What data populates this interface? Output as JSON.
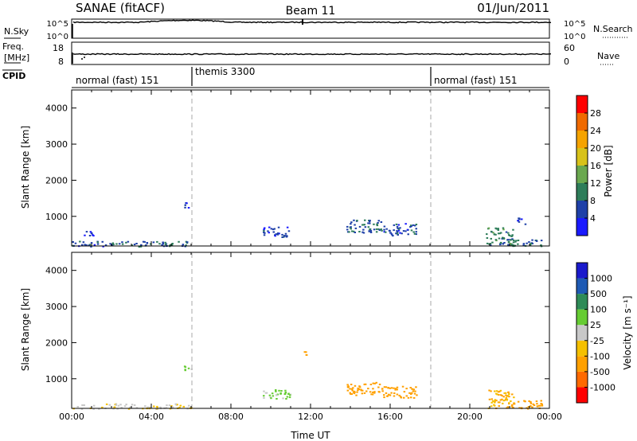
{
  "header": {
    "station": "SANAE (fitACF)",
    "beam": "Beam 11",
    "date": "01/Jun/2011"
  },
  "noise_panel": {
    "left_label": "N.Sky",
    "right_label": "N.Search",
    "left_ticks": [
      "10^5",
      "10^0"
    ],
    "right_ticks": [
      "10^5",
      "10^0"
    ]
  },
  "freq_panel": {
    "left_label_1": "Freq.",
    "left_label_2": "[MHz]",
    "right_label": "Nave",
    "left_ticks": [
      "18",
      "8"
    ],
    "right_ticks": [
      "60",
      "0"
    ]
  },
  "cpid": {
    "label": "CPID",
    "segments": [
      {
        "start_hour": 0,
        "label": "normal (fast) 151"
      },
      {
        "start_hour": 6,
        "label": "themis 3300"
      },
      {
        "start_hour": 18,
        "label": "normal (fast) 151"
      }
    ]
  },
  "colors": {
    "power_scale": [
      "#1a1aff",
      "#1e40a8",
      "#2e7d5a",
      "#6aa84f",
      "#d8c21a",
      "#f5a300",
      "#f06a00",
      "#ff0000"
    ],
    "velocity_scale": [
      "#ff0000",
      "#ff6a00",
      "#ffa000",
      "#f5c000",
      "#c8c8c8",
      "#66cc33",
      "#2e8b57",
      "#1e5ab4",
      "#1a1acc"
    ]
  },
  "chart_data": [
    {
      "type": "heatmap",
      "name": "power",
      "title": "",
      "xlabel": "",
      "ylabel": "Slant Range [km]",
      "xlim": [
        0,
        24
      ],
      "ylim": [
        180,
        4500
      ],
      "y_ticks": [
        1000,
        2000,
        3000,
        4000
      ],
      "x_ticks": [
        0,
        4,
        8,
        12,
        16,
        20,
        24
      ],
      "colorbar": {
        "label": "Power [dB]",
        "range": [
          0,
          32
        ],
        "ticks": [
          "4",
          "8",
          "12",
          "16",
          "20",
          "24",
          "28"
        ]
      },
      "regions": [
        {
          "x": [
            0.0,
            2.0
          ],
          "y": [
            180,
            330
          ],
          "value": 6
        },
        {
          "x": [
            2.0,
            6.0
          ],
          "y": [
            180,
            320
          ],
          "value": 8
        },
        {
          "x": [
            5.6,
            6.0
          ],
          "y": [
            1250,
            1420
          ],
          "value": 6
        },
        {
          "x": [
            9.6,
            11.0
          ],
          "y": [
            440,
            720
          ],
          "value": 6
        },
        {
          "x": [
            13.8,
            15.6
          ],
          "y": [
            560,
            920
          ],
          "value": 7
        },
        {
          "x": [
            15.6,
            17.3
          ],
          "y": [
            480,
            820
          ],
          "value": 6
        },
        {
          "x": [
            20.8,
            22.2
          ],
          "y": [
            200,
            700
          ],
          "value": 10
        },
        {
          "x": [
            21.8,
            23.6
          ],
          "y": [
            190,
            400
          ],
          "value": 9
        },
        {
          "x": [
            22.3,
            22.8
          ],
          "y": [
            800,
            1000
          ],
          "value": 5
        },
        {
          "x": [
            0.6,
            1.1
          ],
          "y": [
            450,
            650
          ],
          "value": 5
        }
      ]
    },
    {
      "type": "heatmap",
      "name": "velocity",
      "title": "",
      "xlabel": "Time UT",
      "ylabel": "Slant Range [km]",
      "xlim": [
        0,
        24
      ],
      "ylim": [
        180,
        4500
      ],
      "y_ticks": [
        1000,
        2000,
        3000,
        4000
      ],
      "x_ticks": [
        0,
        4,
        8,
        12,
        16,
        20,
        24
      ],
      "x_tick_labels": [
        "00:00",
        "04:00",
        "08:00",
        "12:00",
        "16:00",
        "20:00",
        "00:00"
      ],
      "colorbar": {
        "label": "Velocity [m s⁻¹]",
        "ticks": [
          "1000",
          "500",
          "100",
          "25",
          "-25",
          "-100",
          "-500",
          "-1000"
        ]
      },
      "regions": [
        {
          "x": [
            0.0,
            6.0
          ],
          "y": [
            180,
            320
          ],
          "value": -20
        },
        {
          "x": [
            5.6,
            6.0
          ],
          "y": [
            1250,
            1420
          ],
          "value": 60
        },
        {
          "x": [
            9.6,
            11.0
          ],
          "y": [
            440,
            720
          ],
          "value": 40
        },
        {
          "x": [
            13.8,
            15.6
          ],
          "y": [
            560,
            920
          ],
          "value": -300
        },
        {
          "x": [
            15.6,
            17.3
          ],
          "y": [
            480,
            820
          ],
          "value": -300
        },
        {
          "x": [
            20.8,
            22.2
          ],
          "y": [
            200,
            700
          ],
          "value": -100
        },
        {
          "x": [
            21.8,
            23.6
          ],
          "y": [
            190,
            420
          ],
          "value": -400
        },
        {
          "x": [
            11.4,
            11.8
          ],
          "y": [
            1650,
            1780
          ],
          "value": -150
        }
      ]
    }
  ]
}
